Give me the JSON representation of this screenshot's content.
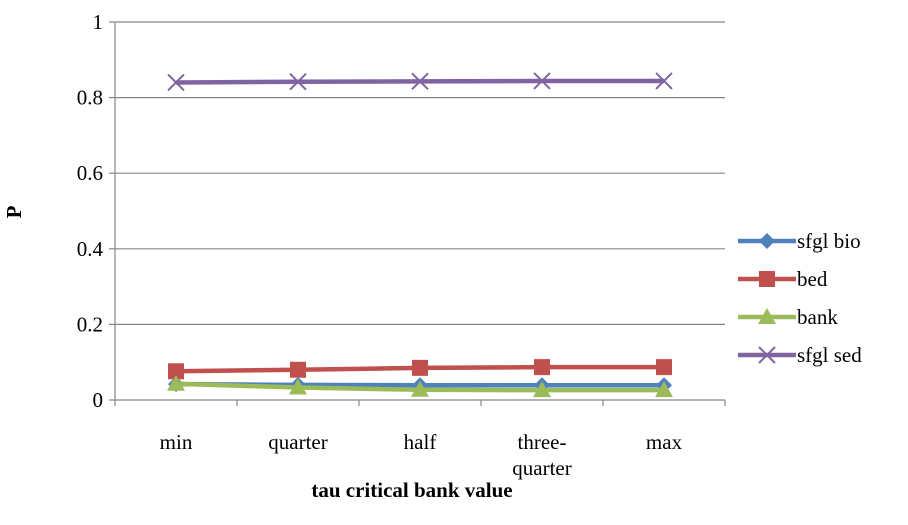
{
  "chart_data": {
    "type": "line",
    "title": "",
    "xlabel": "tau critical bank value",
    "ylabel": "P",
    "categories": [
      [
        "min"
      ],
      [
        "quarter"
      ],
      [
        "half"
      ],
      [
        "three-",
        "quarter"
      ],
      [
        "max"
      ]
    ],
    "yticks": [
      "0",
      "0.2",
      "0.4",
      "0.6",
      "0.8",
      "1"
    ],
    "ylim": [
      0,
      1
    ],
    "grid": "horizontal",
    "legend": "right",
    "series": [
      {
        "name": "sfgl bio",
        "color": "#4F81BD",
        "marker": "diamond",
        "values": [
          0.042,
          0.04,
          0.039,
          0.039,
          0.039
        ]
      },
      {
        "name": "bed",
        "color": "#C0504D",
        "marker": "square",
        "values": [
          0.076,
          0.08,
          0.085,
          0.087,
          0.087
        ]
      },
      {
        "name": "bank",
        "color": "#9BBB59",
        "marker": "triangle",
        "values": [
          0.043,
          0.033,
          0.027,
          0.026,
          0.026
        ]
      },
      {
        "name": "sfgl sed",
        "color": "#8064A2",
        "marker": "x",
        "values": [
          0.84,
          0.842,
          0.843,
          0.844,
          0.844
        ]
      }
    ]
  }
}
